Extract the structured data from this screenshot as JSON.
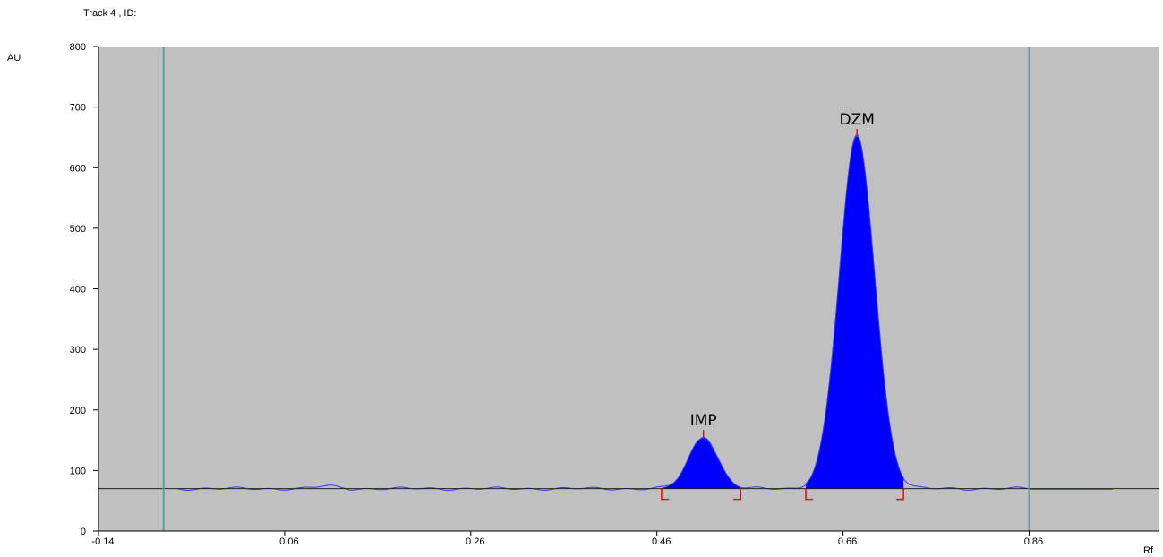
{
  "header": {
    "title": "Track  4 , ID:"
  },
  "chart_data": {
    "type": "line",
    "title": "Track  4 , ID:",
    "xlabel": "Rf",
    "ylabel": "AU",
    "xlim": [
      -0.14,
      1.0
    ],
    "ylim": [
      0,
      800
    ],
    "x_ticks": [
      -0.14,
      0.06,
      0.26,
      0.46,
      0.66,
      0.86
    ],
    "x_tick_labels": [
      "-0.14",
      "0.06",
      "0.26",
      "0.46",
      "0.66",
      "0.86"
    ],
    "y_ticks": [
      0,
      100,
      200,
      300,
      400,
      500,
      600,
      700,
      800
    ],
    "y_tick_labels": [
      "0",
      "100",
      "200",
      "300",
      "400",
      "500",
      "600",
      "700",
      "800"
    ],
    "baseline_au": 70,
    "front_lines_rf": [
      -0.07,
      0.86
    ],
    "grid": false,
    "peaks": [
      {
        "name": "IMP",
        "rf_max": 0.51,
        "height_au": 155,
        "rf_start": 0.465,
        "rf_end": 0.55
      },
      {
        "name": "DZM",
        "rf_max": 0.675,
        "height_au": 652,
        "rf_start": 0.62,
        "rf_end": 0.725
      }
    ],
    "colors": {
      "plot_bg": "#c0c0c0",
      "fill": "#0000ff",
      "line": "#3333ff",
      "front_line": "#5f9ea0",
      "baseline": "#222222",
      "marker": "#ff0000"
    }
  }
}
